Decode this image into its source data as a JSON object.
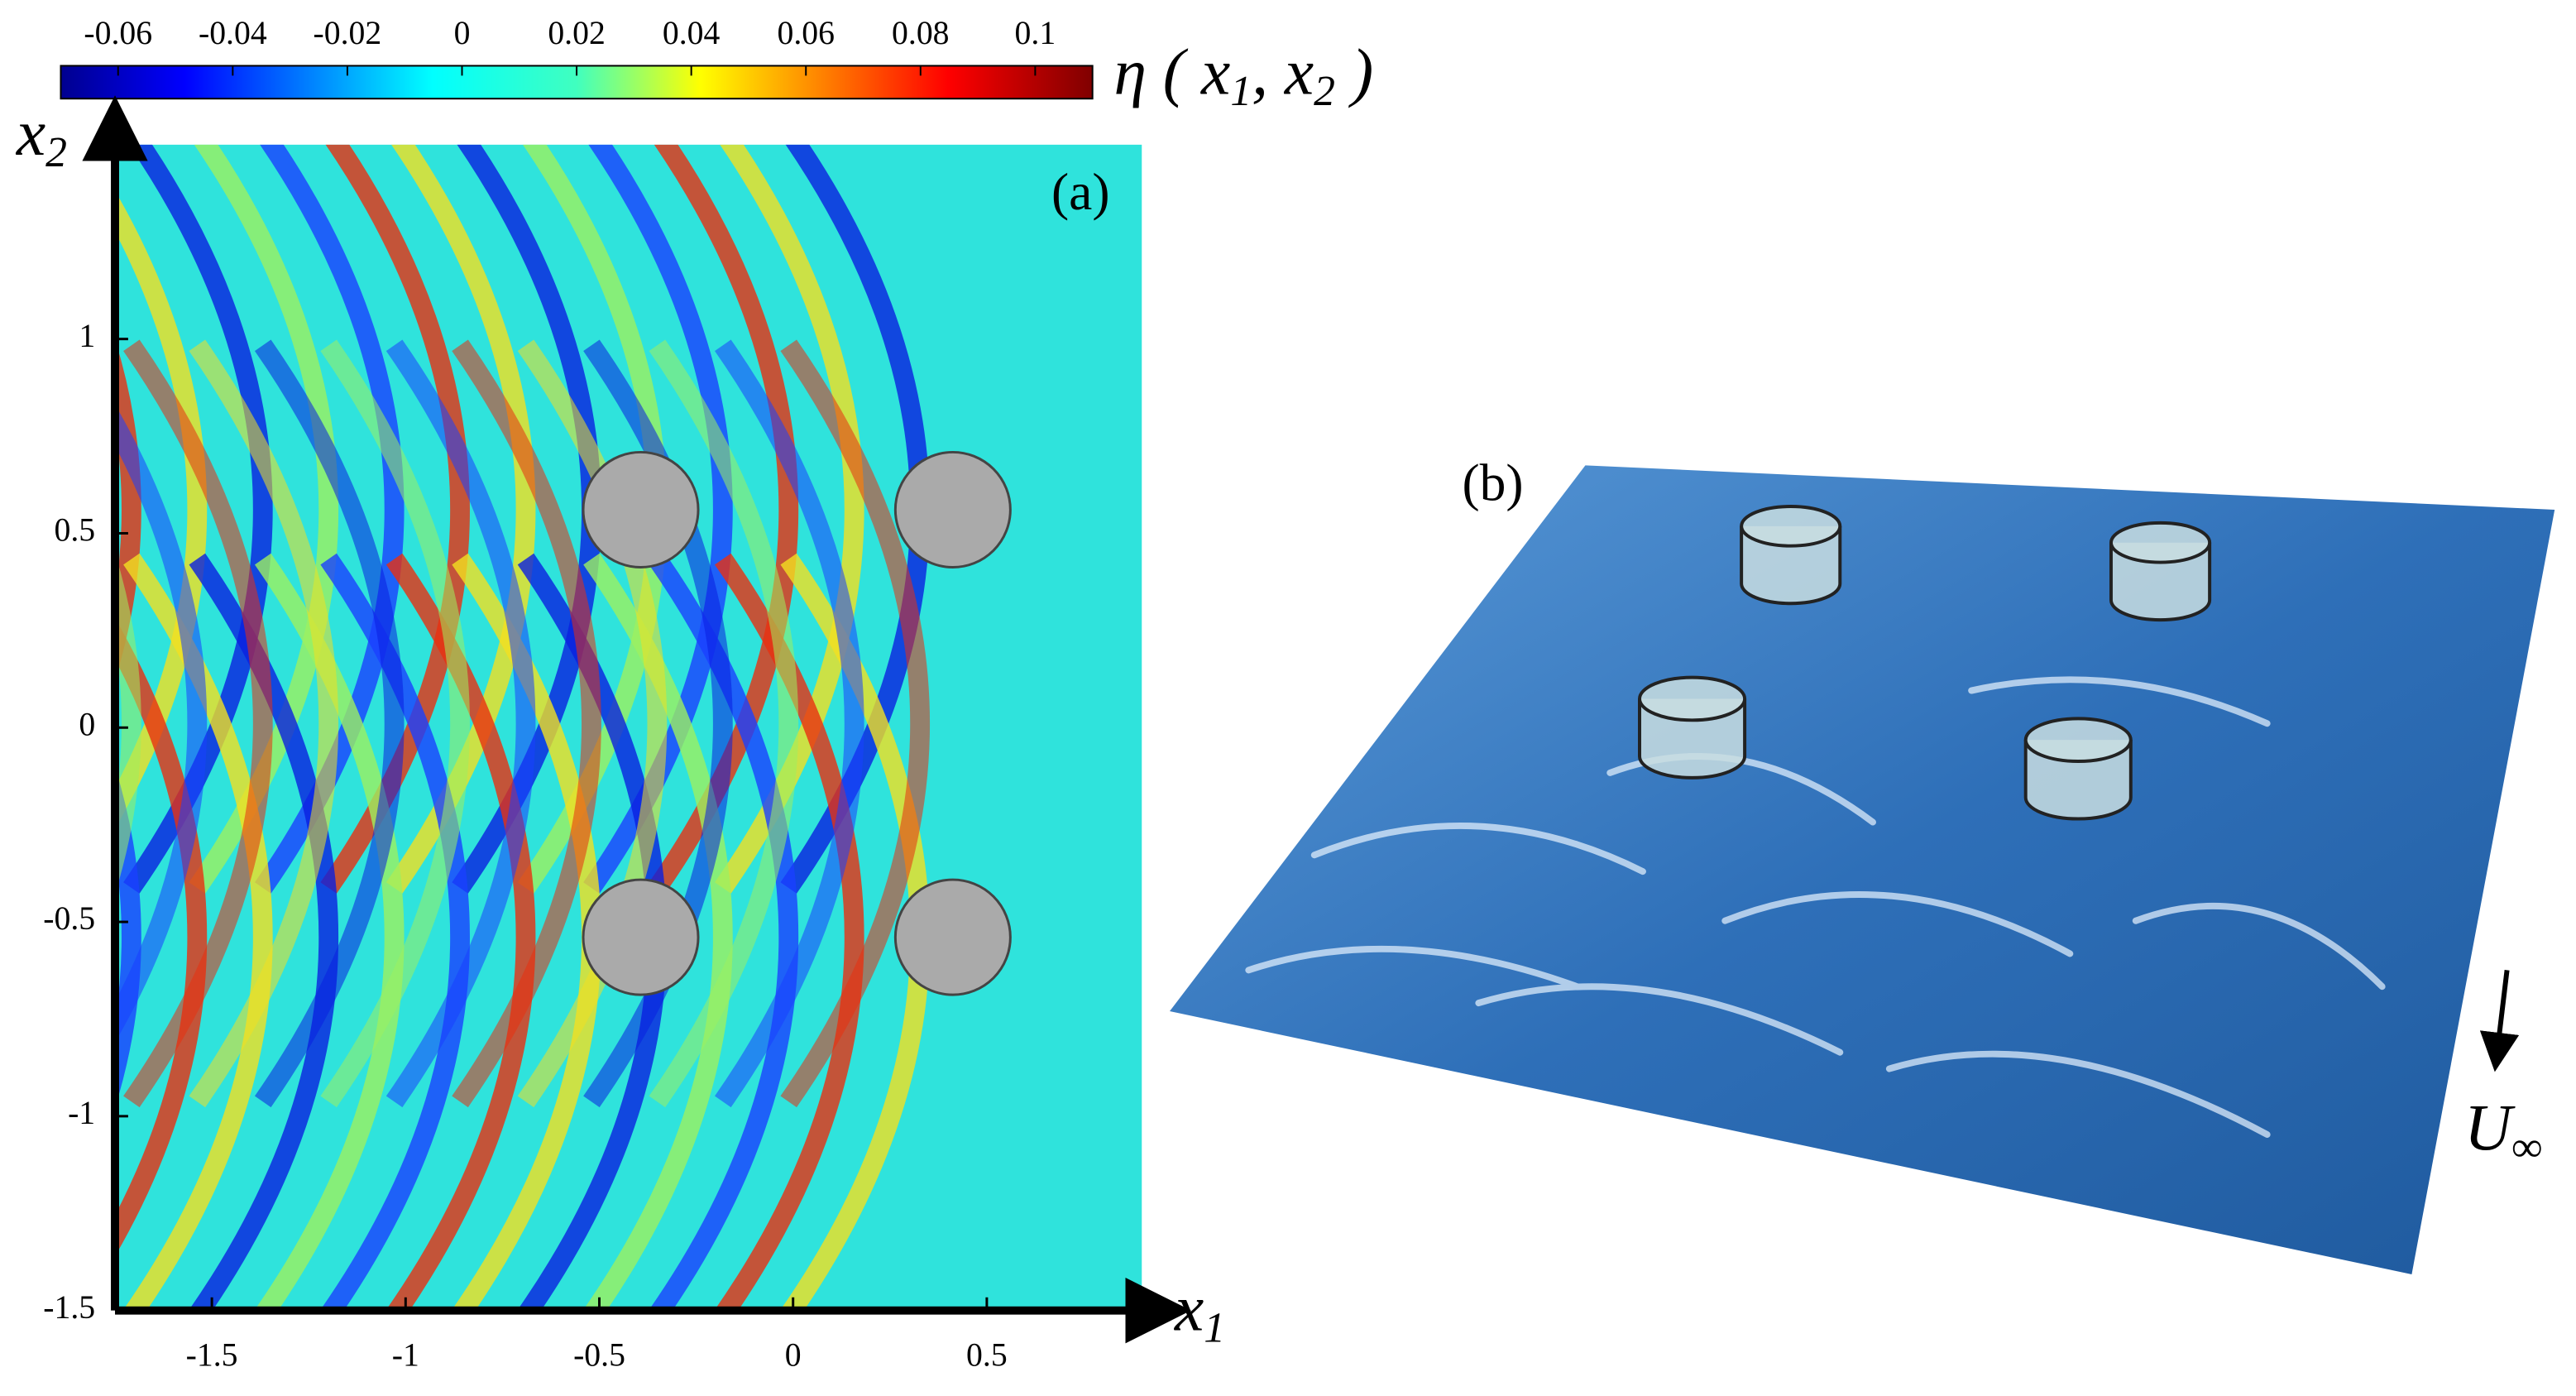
{
  "chart_data": [
    {
      "type": "contour",
      "panel_label": "(a)",
      "colormap": "jet",
      "xlim": [
        -1.75,
        0.9
      ],
      "ylim": [
        -1.5,
        1.5
      ],
      "xticks": [
        -1.5,
        -1,
        -0.5,
        0,
        0.5
      ],
      "yticks": [
        -1.5,
        -1,
        -0.5,
        0,
        0.5,
        1
      ],
      "clim": [
        -0.07,
        0.11
      ],
      "cticks": [
        -0.06,
        -0.04,
        -0.02,
        0,
        0.02,
        0.04,
        0.06,
        0.08,
        0.1
      ],
      "xlabel": [
        {
          "text": "x"
        },
        {
          "text": "1",
          "sub": true
        }
      ],
      "ylabel": [
        {
          "text": "x"
        },
        {
          "text": "2",
          "sub": true
        }
      ],
      "colorbar_label": [
        {
          "text": "η ( x"
        },
        {
          "text": "1",
          "sub": true
        },
        {
          "text": ", x"
        },
        {
          "text": "2",
          "sub": true
        },
        {
          "text": " )"
        }
      ]
    },
    {
      "type": "surface",
      "panel_label": "(b)",
      "flow_label": [
        {
          "text": "U"
        },
        {
          "text": "∞",
          "sub": true
        }
      ]
    }
  ]
}
